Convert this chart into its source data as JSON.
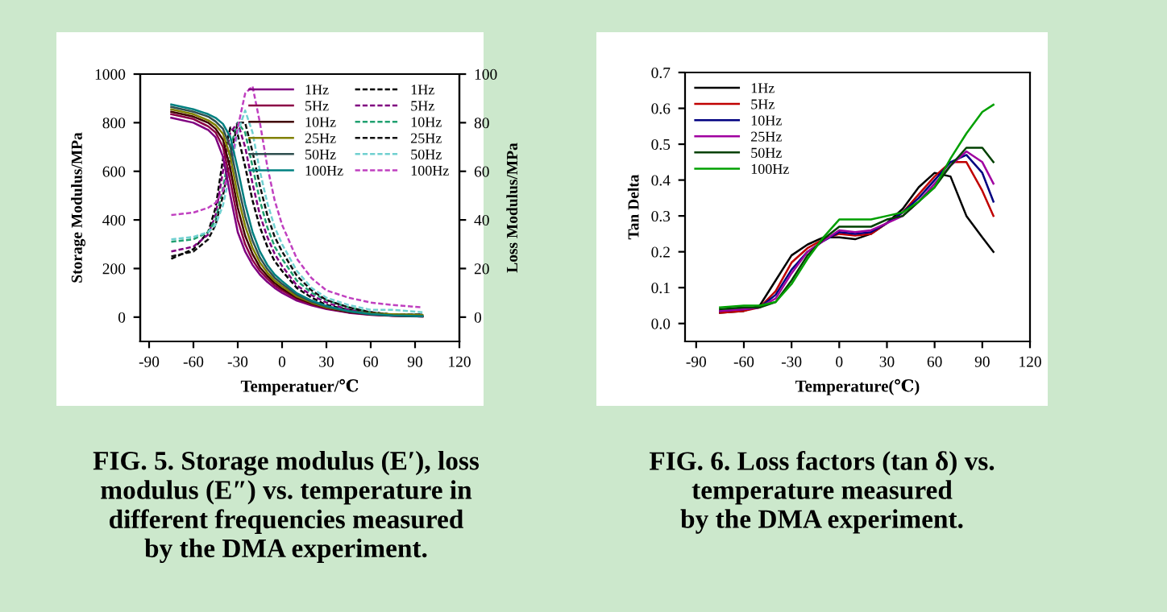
{
  "chart_data": [
    {
      "type": "line",
      "xlabel": "Temperatuer/℃",
      "ylabel": "Storage Modulus/MPa",
      "y2label": "Loss Modulus/MPa",
      "x": [
        -75,
        -60,
        -50,
        -45,
        -40,
        -35,
        -30,
        -25,
        -20,
        -15,
        -10,
        -5,
        0,
        10,
        20,
        30,
        45,
        60,
        75,
        95
      ],
      "xlim": [
        -96,
        120
      ],
      "xticks": [
        -90,
        -60,
        -30,
        0,
        30,
        60,
        90,
        120
      ],
      "ylim": [
        -100,
        1000
      ],
      "yticks": [
        0,
        200,
        400,
        600,
        800,
        1000
      ],
      "y2lim": [
        -10,
        100
      ],
      "y2ticks": [
        0,
        20,
        40,
        60,
        80,
        100
      ],
      "legend": "top right",
      "series": [
        {
          "name": "1Hz",
          "color": "#800080",
          "line_style": "solid",
          "values": [
            820,
            800,
            770,
            740,
            660,
            500,
            350,
            270,
            215,
            175,
            145,
            120,
            100,
            68,
            48,
            33,
            18,
            9,
            5,
            3
          ]
        },
        {
          "name": "5Hz",
          "color": "#8b0045",
          "line_style": "solid",
          "values": [
            835,
            815,
            785,
            760,
            700,
            560,
            400,
            300,
            235,
            190,
            158,
            130,
            110,
            75,
            52,
            36,
            20,
            10,
            6,
            3
          ]
        },
        {
          "name": "10Hz",
          "color": "#400000",
          "line_style": "solid",
          "values": [
            845,
            825,
            800,
            775,
            730,
            610,
            450,
            335,
            260,
            205,
            170,
            140,
            118,
            80,
            56,
            38,
            21,
            11,
            6,
            3
          ]
        },
        {
          "name": "25Hz",
          "color": "#808000",
          "line_style": "solid",
          "values": [
            855,
            835,
            810,
            790,
            755,
            660,
            500,
            375,
            285,
            225,
            183,
            150,
            127,
            85,
            60,
            40,
            24,
            15,
            12,
            9
          ]
        },
        {
          "name": "50Hz",
          "color": "#2f4f4f",
          "line_style": "solid",
          "values": [
            865,
            845,
            825,
            805,
            775,
            700,
            550,
            415,
            315,
            245,
            198,
            162,
            137,
            92,
            64,
            43,
            23,
            12,
            7,
            4
          ]
        },
        {
          "name": "100Hz",
          "color": "#008080",
          "line_style": "solid",
          "values": [
            875,
            855,
            835,
            820,
            795,
            740,
            610,
            465,
            350,
            270,
            215,
            175,
            148,
            98,
            68,
            46,
            25,
            13,
            7,
            4
          ]
        },
        {
          "name": "1Hz",
          "color": "#000000",
          "line_style": "dashed",
          "axis": "y2",
          "values": [
            24,
            28,
            35,
            45,
            65,
            78,
            75,
            62,
            48,
            37,
            29,
            23,
            19,
            12,
            8,
            5,
            3,
            2,
            1,
            1
          ]
        },
        {
          "name": "5Hz",
          "color": "#800080",
          "line_style": "dashed",
          "axis": "y2",
          "values": [
            27,
            29,
            34,
            42,
            60,
            76,
            80,
            70,
            55,
            42,
            33,
            26,
            21,
            13,
            9,
            6,
            3,
            2,
            1,
            1
          ]
        },
        {
          "name": "10Hz",
          "color": "#20a070",
          "line_style": "dashed",
          "axis": "y2",
          "values": [
            31,
            32,
            35,
            40,
            53,
            70,
            80,
            76,
            62,
            48,
            37,
            29,
            24,
            15,
            10,
            7,
            4,
            2,
            1,
            1
          ]
        },
        {
          "name": "25Hz",
          "color": "#101010",
          "line_style": "dashed",
          "axis": "y2",
          "values": [
            25,
            27,
            32,
            38,
            50,
            66,
            80,
            80,
            68,
            54,
            42,
            33,
            27,
            17,
            11,
            7,
            4,
            2,
            1,
            1
          ]
        },
        {
          "name": "50Hz",
          "color": "#70d0d0",
          "line_style": "dashed",
          "axis": "y2",
          "values": [
            32,
            33,
            35,
            38,
            46,
            60,
            76,
            85,
            76,
            60,
            47,
            37,
            30,
            19,
            12,
            8,
            5,
            3,
            3,
            2
          ]
        },
        {
          "name": "100Hz",
          "color": "#c040c0",
          "line_style": "dashed",
          "axis": "y2",
          "values": [
            42,
            43,
            45,
            47,
            52,
            62,
            78,
            92,
            95,
            80,
            62,
            48,
            38,
            24,
            16,
            11,
            8,
            6,
            5,
            4
          ]
        }
      ],
      "annotations": [
        "FIG. 5. Storage modulus (E′), loss\nmodulus (E″) vs. temperature in\ndifferent frequencies measured\nby the DMA experiment."
      ]
    },
    {
      "type": "line",
      "xlabel": "Temperature(℃)",
      "ylabel": "Tan Delta",
      "x": [
        -75,
        -60,
        -50,
        -40,
        -30,
        -20,
        -10,
        0,
        10,
        20,
        30,
        40,
        50,
        60,
        70,
        80,
        90,
        97
      ],
      "xlim": [
        -97,
        120
      ],
      "xticks": [
        -90,
        -60,
        -30,
        0,
        30,
        60,
        90,
        120
      ],
      "ylim": [
        -0.05,
        0.7
      ],
      "yticks": [
        {
          "value": 0,
          "label": "0.0"
        },
        0.1,
        0.2,
        0.3,
        0.4,
        0.5,
        0.6,
        0.7
      ],
      "legend": "top left",
      "series": [
        {
          "name": "1Hz",
          "color": "#000000",
          "line_style": "solid",
          "values": [
            0.03,
            0.035,
            0.05,
            0.12,
            0.19,
            0.22,
            0.24,
            0.24,
            0.235,
            0.25,
            0.28,
            0.32,
            0.38,
            0.42,
            0.41,
            0.3,
            0.24,
            0.2
          ]
        },
        {
          "name": "5Hz",
          "color": "#c00000",
          "line_style": "solid",
          "values": [
            0.03,
            0.035,
            0.045,
            0.09,
            0.17,
            0.21,
            0.235,
            0.25,
            0.245,
            0.25,
            0.28,
            0.31,
            0.36,
            0.41,
            0.45,
            0.45,
            0.37,
            0.3
          ]
        },
        {
          "name": "10Hz",
          "color": "#000080",
          "line_style": "solid",
          "values": [
            0.035,
            0.04,
            0.045,
            0.08,
            0.15,
            0.2,
            0.23,
            0.255,
            0.25,
            0.255,
            0.28,
            0.31,
            0.35,
            0.4,
            0.45,
            0.47,
            0.42,
            0.34
          ]
        },
        {
          "name": "25Hz",
          "color": "#a000a0",
          "line_style": "solid",
          "values": [
            0.035,
            0.04,
            0.045,
            0.07,
            0.14,
            0.2,
            0.23,
            0.26,
            0.255,
            0.26,
            0.28,
            0.3,
            0.34,
            0.39,
            0.44,
            0.48,
            0.45,
            0.39
          ]
        },
        {
          "name": "50Hz",
          "color": "#004000",
          "line_style": "solid",
          "values": [
            0.04,
            0.045,
            0.045,
            0.06,
            0.12,
            0.19,
            0.235,
            0.27,
            0.27,
            0.27,
            0.29,
            0.3,
            0.34,
            0.38,
            0.44,
            0.49,
            0.49,
            0.45
          ]
        },
        {
          "name": "100Hz",
          "color": "#00a000",
          "line_style": "solid",
          "values": [
            0.045,
            0.05,
            0.05,
            0.06,
            0.11,
            0.18,
            0.24,
            0.29,
            0.29,
            0.29,
            0.3,
            0.31,
            0.34,
            0.38,
            0.46,
            0.53,
            0.59,
            0.61
          ]
        }
      ],
      "annotations": [
        "FIG. 6. Loss factors (tan δ) vs.\ntemperature measured\nby the DMA experiment."
      ]
    }
  ]
}
